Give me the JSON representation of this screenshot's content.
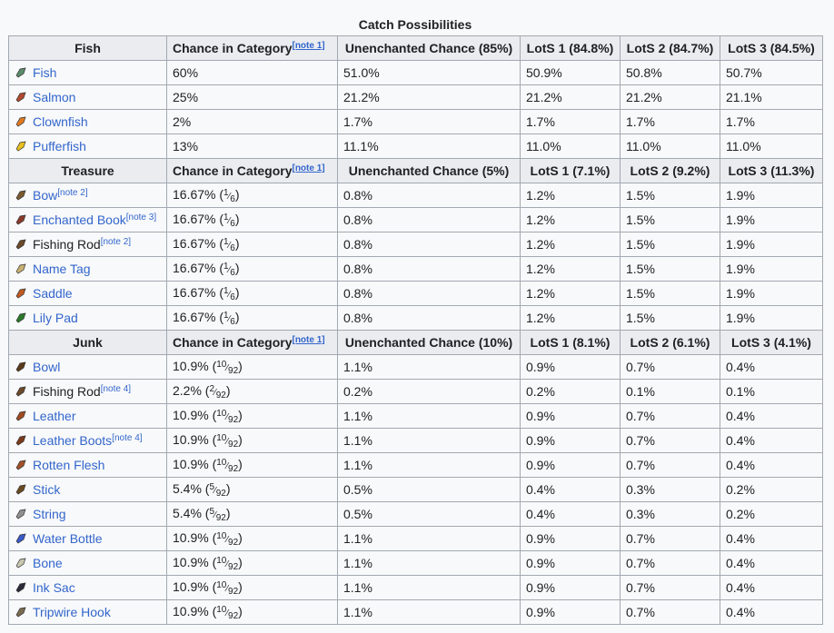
{
  "caption": "Catch Possibilities",
  "columns_common": {
    "chance_in_category": "Chance in Category",
    "note1": "[note 1]"
  },
  "sections": [
    {
      "key": "fish",
      "header": "Fish",
      "unenchanted": "Unenchanted Chance (85%)",
      "lots1": "LotS 1 (84.8%)",
      "lots2": "LotS 2 (84.7%)",
      "lots3": "LotS 3 (84.5%)",
      "rows": [
        {
          "icon": "fish-icon",
          "color": "#5a8a6a",
          "name": "Fish",
          "link": true,
          "note": "",
          "cat": "60%",
          "frac_n": "",
          "frac_d": "",
          "unench": "51.0%",
          "l1": "50.9%",
          "l2": "50.8%",
          "l3": "50.7%"
        },
        {
          "icon": "salmon-icon",
          "color": "#b04a2e",
          "name": "Salmon",
          "link": true,
          "note": "",
          "cat": "25%",
          "frac_n": "",
          "frac_d": "",
          "unench": "21.2%",
          "l1": "21.2%",
          "l2": "21.2%",
          "l3": "21.1%"
        },
        {
          "icon": "clownfish-icon",
          "color": "#e07a20",
          "name": "Clownfish",
          "link": true,
          "note": "",
          "cat": "2%",
          "frac_n": "",
          "frac_d": "",
          "unench": "1.7%",
          "l1": "1.7%",
          "l2": "1.7%",
          "l3": "1.7%"
        },
        {
          "icon": "pufferfish-icon",
          "color": "#e8c020",
          "name": "Pufferfish",
          "link": true,
          "note": "",
          "cat": "13%",
          "frac_n": "",
          "frac_d": "",
          "unench": "11.1%",
          "l1": "11.0%",
          "l2": "11.0%",
          "l3": "11.0%"
        }
      ]
    },
    {
      "key": "treasure",
      "header": "Treasure",
      "unenchanted": "Unenchanted Chance (5%)",
      "lots1": "LotS 1 (7.1%)",
      "lots2": "LotS 2 (9.2%)",
      "lots3": "LotS 3 (11.3%)",
      "rows": [
        {
          "icon": "bow-icon",
          "color": "#7a5a30",
          "name": "Bow",
          "link": true,
          "note": "[note 2]",
          "cat": "16.67% (",
          "frac_n": "1",
          "frac_d": "6",
          "unench": "0.8%",
          "l1": "1.2%",
          "l2": "1.5%",
          "l3": "1.9%"
        },
        {
          "icon": "enchanted-book-icon",
          "color": "#8a3a2a",
          "name": "Enchanted Book",
          "link": true,
          "note": "[note 3]",
          "cat": "16.67% (",
          "frac_n": "1",
          "frac_d": "6",
          "unench": "0.8%",
          "l1": "1.2%",
          "l2": "1.5%",
          "l3": "1.9%"
        },
        {
          "icon": "fishing-rod-icon",
          "color": "#6a4a2a",
          "name": "Fishing Rod",
          "link": false,
          "note": "[note 2]",
          "cat": "16.67% (",
          "frac_n": "1",
          "frac_d": "6",
          "unench": "0.8%",
          "l1": "1.2%",
          "l2": "1.5%",
          "l3": "1.9%"
        },
        {
          "icon": "name-tag-icon",
          "color": "#c8b070",
          "name": "Name Tag",
          "link": true,
          "note": "",
          "cat": "16.67% (",
          "frac_n": "1",
          "frac_d": "6",
          "unench": "0.8%",
          "l1": "1.2%",
          "l2": "1.5%",
          "l3": "1.9%"
        },
        {
          "icon": "saddle-icon",
          "color": "#c05a20",
          "name": "Saddle",
          "link": true,
          "note": "",
          "cat": "16.67% (",
          "frac_n": "1",
          "frac_d": "6",
          "unench": "0.8%",
          "l1": "1.2%",
          "l2": "1.5%",
          "l3": "1.9%"
        },
        {
          "icon": "lily-pad-icon",
          "color": "#2a7a2a",
          "name": "Lily Pad",
          "link": true,
          "note": "",
          "cat": "16.67% (",
          "frac_n": "1",
          "frac_d": "6",
          "unench": "0.8%",
          "l1": "1.2%",
          "l2": "1.5%",
          "l3": "1.9%"
        }
      ]
    },
    {
      "key": "junk",
      "header": "Junk",
      "unenchanted": "Unenchanted Chance (10%)",
      "lots1": "LotS 1 (8.1%)",
      "lots2": "LotS 2 (6.1%)",
      "lots3": "LotS 3 (4.1%)",
      "rows": [
        {
          "icon": "bowl-icon",
          "color": "#5a3a1a",
          "name": "Bowl",
          "link": true,
          "note": "",
          "cat": "10.9% (",
          "frac_n": "10",
          "frac_d": "92",
          "unench": "1.1%",
          "l1": "0.9%",
          "l2": "0.7%",
          "l3": "0.4%"
        },
        {
          "icon": "fishing-rod-icon",
          "color": "#6a4a2a",
          "name": "Fishing Rod",
          "link": false,
          "note": "[note 4]",
          "cat": "2.2% (",
          "frac_n": "2",
          "frac_d": "92",
          "unench": "0.2%",
          "l1": "0.2%",
          "l2": "0.1%",
          "l3": "0.1%"
        },
        {
          "icon": "leather-icon",
          "color": "#a04a20",
          "name": "Leather",
          "link": true,
          "note": "",
          "cat": "10.9% (",
          "frac_n": "10",
          "frac_d": "92",
          "unench": "1.1%",
          "l1": "0.9%",
          "l2": "0.7%",
          "l3": "0.4%"
        },
        {
          "icon": "leather-boots-icon",
          "color": "#7a3a1a",
          "name": "Leather Boots",
          "link": true,
          "note": "[note 4]",
          "cat": "10.9% (",
          "frac_n": "10",
          "frac_d": "92",
          "unench": "1.1%",
          "l1": "0.9%",
          "l2": "0.7%",
          "l3": "0.4%"
        },
        {
          "icon": "rotten-flesh-icon",
          "color": "#a0502a",
          "name": "Rotten Flesh",
          "link": true,
          "note": "",
          "cat": "10.9% (",
          "frac_n": "10",
          "frac_d": "92",
          "unench": "1.1%",
          "l1": "0.9%",
          "l2": "0.7%",
          "l3": "0.4%"
        },
        {
          "icon": "stick-icon",
          "color": "#6a4a20",
          "name": "Stick",
          "link": true,
          "note": "",
          "cat": "5.4% (",
          "frac_n": "5",
          "frac_d": "92",
          "unench": "0.5%",
          "l1": "0.4%",
          "l2": "0.3%",
          "l3": "0.2%"
        },
        {
          "icon": "string-icon",
          "color": "#909090",
          "name": "String",
          "link": true,
          "note": "",
          "cat": "5.4% (",
          "frac_n": "5",
          "frac_d": "92",
          "unench": "0.5%",
          "l1": "0.4%",
          "l2": "0.3%",
          "l3": "0.2%"
        },
        {
          "icon": "water-bottle-icon",
          "color": "#3a5ac8",
          "name": "Water Bottle",
          "link": true,
          "note": "",
          "cat": "10.9% (",
          "frac_n": "10",
          "frac_d": "92",
          "unench": "1.1%",
          "l1": "0.9%",
          "l2": "0.7%",
          "l3": "0.4%"
        },
        {
          "icon": "bone-icon",
          "color": "#c8c8b0",
          "name": "Bone",
          "link": true,
          "note": "",
          "cat": "10.9% (",
          "frac_n": "10",
          "frac_d": "92",
          "unench": "1.1%",
          "l1": "0.9%",
          "l2": "0.7%",
          "l3": "0.4%"
        },
        {
          "icon": "ink-sac-icon",
          "color": "#2a2a3a",
          "name": "Ink Sac",
          "link": true,
          "note": "",
          "cat": "10.9% (",
          "frac_n": "10",
          "frac_d": "92",
          "unench": "1.1%",
          "l1": "0.9%",
          "l2": "0.7%",
          "l3": "0.4%"
        },
        {
          "icon": "tripwire-hook-icon",
          "color": "#7a6a50",
          "name": "Tripwire Hook",
          "link": true,
          "note": "",
          "cat": "10.9% (",
          "frac_n": "10",
          "frac_d": "92",
          "unench": "1.1%",
          "l1": "0.9%",
          "l2": "0.7%",
          "l3": "0.4%"
        }
      ]
    }
  ]
}
